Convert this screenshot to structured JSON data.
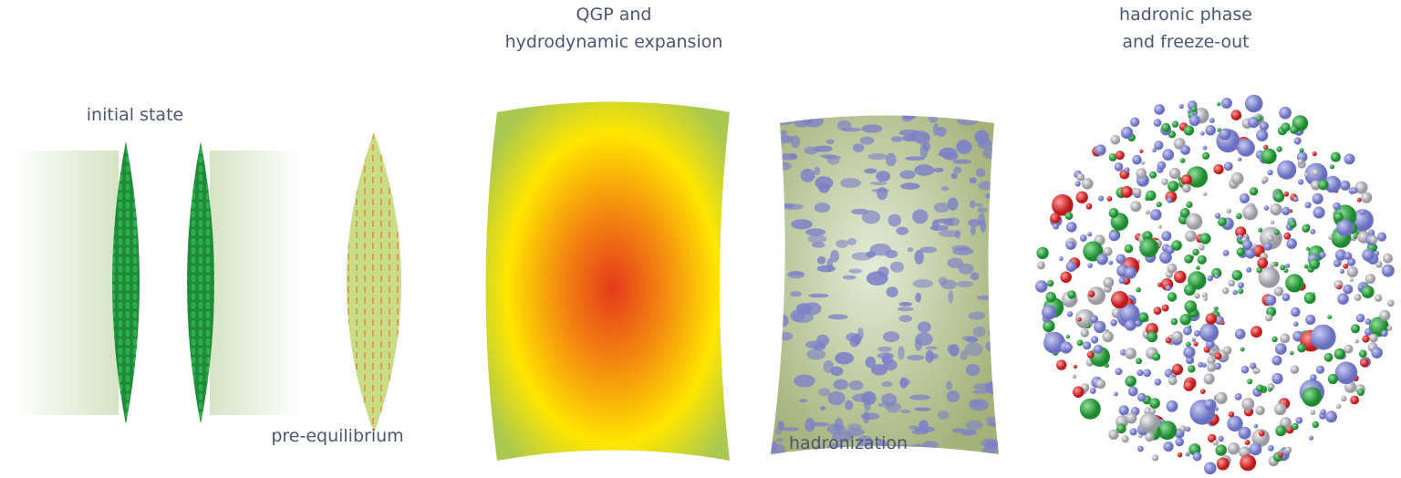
{
  "stages": [
    {
      "label_lines": [
        "initial state"
      ]
    },
    {
      "label_lines": [
        "pre-equilibrium"
      ]
    },
    {
      "label_lines": [
        "QGP and",
        "hydrodynamic expansion"
      ]
    },
    {
      "label_lines": [
        "hadronization"
      ]
    },
    {
      "label_lines": [
        "hadronic phase",
        "and freeze-out"
      ]
    }
  ]
}
